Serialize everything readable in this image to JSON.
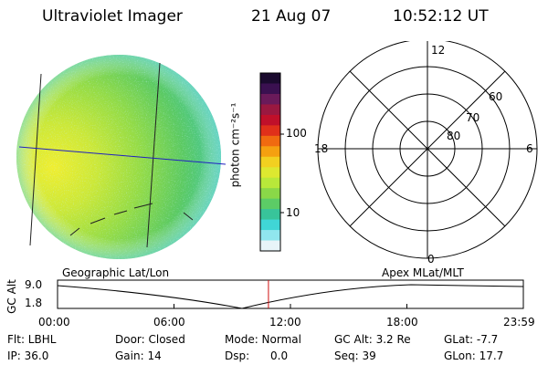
{
  "header": {
    "instrument": "Ultraviolet Imager",
    "date": "21 Aug 07",
    "time": "10:52:12 UT"
  },
  "colorbar": {
    "unit_label": "photon cm⁻²s⁻¹",
    "scale": "log",
    "ticks": [
      "100",
      "10"
    ],
    "colors": [
      "#1a0a2e",
      "#3a1050",
      "#6a1a5a",
      "#9a1840",
      "#c0102a",
      "#e0301a",
      "#f06a10",
      "#f5a010",
      "#f2d020",
      "#dde830",
      "#b8e83a",
      "#8ad848",
      "#5ccc66",
      "#38c49a",
      "#40d6d6",
      "#90e6ee",
      "#e8f4f8"
    ]
  },
  "polar_plot": {
    "hour_labels": {
      "top": "12",
      "left": "18",
      "right": "6",
      "bottom": "0"
    },
    "lat_labels": [
      "60",
      "70",
      "80"
    ]
  },
  "timeline": {
    "left_title": "Geographic Lat/Lon",
    "right_title": "Apex  MLat/MLT",
    "y_axis_label": "GC Alt",
    "y_ticks": [
      "9.0",
      "1.8"
    ],
    "x_ticks": [
      "00:00",
      "06:00",
      "12:00",
      "18:00",
      "23:59"
    ],
    "current_time_fraction": 0.4528
  },
  "info": {
    "flt": "Flt: LBHL",
    "door": "Door: Closed",
    "mode": "Mode: Normal",
    "gc_alt": "GC Alt: 3.2 Re",
    "glat": "GLat:  -7.7",
    "ip": "IP: 36.0",
    "gain": "Gain: 14",
    "dsp": "Dsp:      0.0",
    "seq": "Seq: 39",
    "glon": "GLon:  17.7"
  }
}
